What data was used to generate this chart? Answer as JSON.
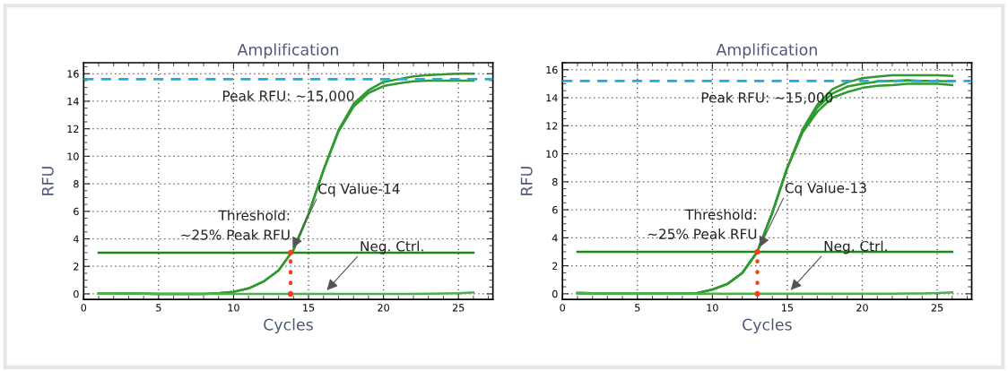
{
  "chart_data": [
    {
      "type": "line",
      "title": "Amplification",
      "xlabel": "Cycles",
      "ylabel": "RFU",
      "xlim": [
        0,
        27.3
      ],
      "ylim": [
        -0.4,
        16.8
      ],
      "xticks": [
        0,
        5,
        10,
        15,
        20,
        25
      ],
      "yticks": [
        0,
        2,
        4,
        6,
        8,
        10,
        12,
        14,
        16
      ],
      "grid": true,
      "legend": false,
      "x": [
        1,
        2,
        3,
        4,
        5,
        6,
        7,
        8,
        9,
        10,
        11,
        12,
        13,
        14,
        15,
        16,
        17,
        18,
        19,
        20,
        21,
        22,
        23,
        24,
        25,
        26
      ],
      "series": [
        {
          "color": "#2f9a2f",
          "values": [
            0.05,
            0.04,
            0.03,
            0.02,
            0.0,
            0.0,
            0.0,
            0.0,
            0.05,
            0.15,
            0.4,
            0.9,
            1.7,
            3.2,
            5.8,
            9.0,
            11.8,
            13.6,
            14.6,
            15.1,
            15.3,
            15.45,
            15.5,
            15.5,
            15.5,
            15.5
          ]
        },
        {
          "color": "#2f9a2f",
          "values": [
            0.05,
            0.04,
            0.03,
            0.02,
            0.0,
            0.0,
            0.0,
            0.0,
            0.05,
            0.15,
            0.4,
            0.9,
            1.7,
            3.2,
            5.8,
            9.0,
            11.9,
            13.8,
            14.8,
            15.4,
            15.6,
            15.8,
            15.9,
            15.95,
            16.0,
            16.0
          ]
        },
        {
          "color": "#4caf4c",
          "values": [
            0.05,
            0.04,
            0.03,
            0.02,
            0.0,
            0.0,
            0.0,
            0.0,
            0.0,
            0.0,
            0.0,
            0.0,
            0.0,
            0.0,
            0.0,
            0.0,
            0.0,
            0.0,
            0.0,
            0.0,
            0.0,
            0.0,
            0.02,
            0.03,
            0.05,
            0.1
          ]
        },
        {
          "color": "#1a8a1a",
          "x": [
            1,
            26
          ],
          "values": [
            3,
            3
          ]
        },
        {
          "color": "#ff3b1f",
          "x": [
            13.8,
            13.8
          ],
          "values": [
            0,
            3
          ],
          "line_style": "dotted",
          "marker": "circle"
        }
      ],
      "ref_lines": [
        {
          "axis": "y",
          "value": 15.6,
          "label": "Peak RFU: ~15,000",
          "color": "#1aaee8",
          "line_style": "dashed"
        }
      ],
      "annotations": [
        {
          "text": "Threshold:\n~25% Peak RFU",
          "x": 13.8,
          "y": 3
        },
        {
          "text": "Cq Value-14",
          "x": 13.8,
          "y": 3
        },
        {
          "text": "Neg. Ctrl.",
          "x": 16,
          "y": 0
        }
      ]
    },
    {
      "type": "line",
      "title": "Amplification",
      "xlabel": "Cycles",
      "ylabel": "RFU",
      "xlim": [
        0,
        27.3
      ],
      "ylim": [
        -0.4,
        16.5
      ],
      "xticks": [
        0,
        5,
        10,
        15,
        20,
        25
      ],
      "yticks": [
        0,
        2,
        4,
        6,
        8,
        10,
        12,
        14,
        16
      ],
      "grid": true,
      "legend": false,
      "x": [
        1,
        2,
        3,
        4,
        5,
        6,
        7,
        8,
        9,
        10,
        11,
        12,
        13,
        14,
        15,
        16,
        17,
        18,
        19,
        20,
        21,
        22,
        23,
        24,
        25,
        26
      ],
      "series": [
        {
          "color": "#2f9a2f",
          "values": [
            0.05,
            0.04,
            0.03,
            0.02,
            0.0,
            0.0,
            0.0,
            0.0,
            0.05,
            0.3,
            0.7,
            1.5,
            3.0,
            5.8,
            9.0,
            11.5,
            13.0,
            14.0,
            14.4,
            14.7,
            14.85,
            14.9,
            15.0,
            15.0,
            15.0,
            14.9
          ]
        },
        {
          "color": "#2f9a2f",
          "values": [
            0.05,
            0.04,
            0.03,
            0.02,
            0.0,
            0.0,
            0.0,
            0.0,
            0.05,
            0.3,
            0.7,
            1.5,
            3.0,
            5.8,
            9.0,
            11.5,
            13.3,
            14.3,
            14.8,
            15.0,
            15.15,
            15.2,
            15.25,
            15.2,
            15.2,
            15.15
          ]
        },
        {
          "color": "#2f9a2f",
          "values": [
            0.05,
            0.04,
            0.03,
            0.02,
            0.0,
            0.0,
            0.0,
            0.0,
            0.05,
            0.3,
            0.7,
            1.5,
            3.0,
            5.8,
            9.0,
            11.7,
            13.5,
            14.6,
            15.1,
            15.4,
            15.5,
            15.6,
            15.6,
            15.6,
            15.6,
            15.55
          ]
        },
        {
          "color": "#4caf4c",
          "values": [
            0.05,
            0.04,
            0.03,
            0.02,
            0.0,
            0.0,
            0.0,
            0.0,
            0.0,
            0.0,
            0.0,
            0.0,
            0.0,
            0.0,
            0.0,
            0.0,
            0.0,
            0.0,
            0.0,
            0.0,
            0.0,
            0.0,
            0.02,
            0.03,
            0.05,
            0.1
          ]
        },
        {
          "color": "#1a8a1a",
          "x": [
            1,
            26
          ],
          "values": [
            3,
            3
          ]
        },
        {
          "color": "#ff3b1f",
          "x": [
            13,
            13
          ],
          "values": [
            0,
            3
          ],
          "line_style": "dotted",
          "marker": "circle"
        }
      ],
      "ref_lines": [
        {
          "axis": "y",
          "value": 15.2,
          "label": "Peak RFU: ~15,000",
          "color": "#1aaee8",
          "line_style": "dashed"
        }
      ],
      "annotations": [
        {
          "text": "Threshold:\n~25% Peak RFU",
          "x": 13,
          "y": 3
        },
        {
          "text": "Cq Value-13",
          "x": 13,
          "y": 3
        },
        {
          "text": "Neg. Ctrl.",
          "x": 15,
          "y": 0
        }
      ]
    }
  ]
}
